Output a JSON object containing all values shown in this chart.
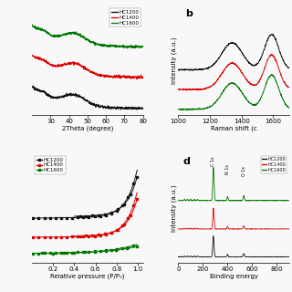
{
  "colors": {
    "HC1200": "#111111",
    "HC1400": "#dd0000",
    "HC1600": "#007700"
  },
  "bg": "#f8f8f8",
  "panel_a": {
    "xlabel": "2Theta (degree)",
    "xlim": [
      20,
      80
    ],
    "xticks": [
      30,
      40,
      50,
      60,
      70,
      80
    ],
    "offsets": {
      "HC1200": 0.0,
      "HC1400": 0.28,
      "HC1600": 0.56
    }
  },
  "panel_b": {
    "label": "b",
    "xlabel": "Raman shift (c",
    "ylabel": "Intensity (a.u.)",
    "xlim": [
      1000,
      1700
    ],
    "xticks": [
      1000,
      1200,
      1400,
      1600
    ],
    "offsets": {
      "HC1200": 0.42,
      "HC1400": 0.21,
      "HC1600": 0.0
    }
  },
  "panel_c": {
    "xlabel": "Relative pressure (P/P₀)",
    "xlim": [
      0.0,
      1.05
    ],
    "xticks": [
      0.2,
      0.4,
      0.6,
      0.8,
      1.0
    ],
    "xtick_labels": [
      "0.2",
      "0.4",
      "0.6",
      "0.8",
      "1.0"
    ]
  },
  "panel_d": {
    "label": "d",
    "xlabel": "Binding energy",
    "ylabel": "Intensity (a.u.)",
    "xlim": [
      0,
      900
    ],
    "xticks": [
      0,
      200,
      400,
      600,
      800
    ],
    "offsets": {
      "HC1200": 0.0,
      "HC1400": 0.28,
      "HC1600": 0.56
    }
  }
}
